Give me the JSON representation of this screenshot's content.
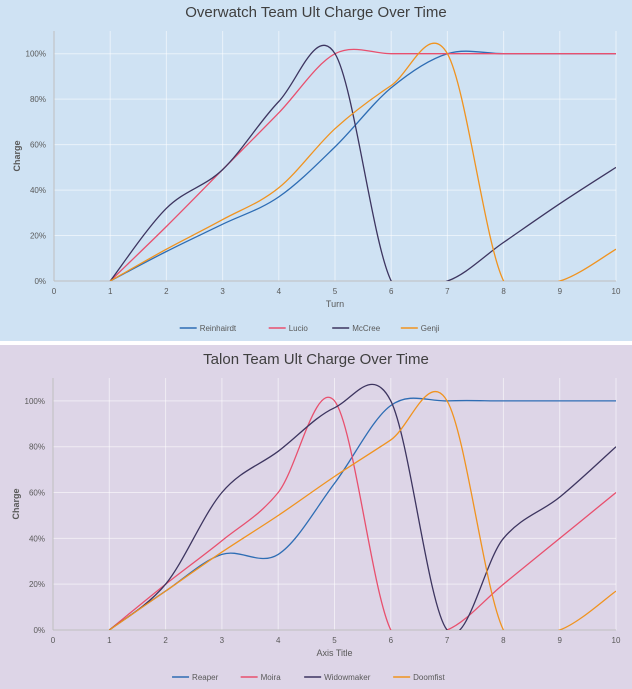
{
  "chart_data": [
    {
      "type": "line",
      "title": "Overwatch Team Ult Charge Over Time",
      "xlabel": "Turn",
      "ylabel": "Charge",
      "xlim": [
        0,
        10
      ],
      "ylim": [
        0,
        1.1
      ],
      "x_ticks": [
        "0",
        "1",
        "2",
        "3",
        "4",
        "5",
        "6",
        "7",
        "8",
        "9",
        "10"
      ],
      "y_ticks": [
        "0%",
        "20%",
        "40%",
        "60%",
        "80%",
        "100%"
      ],
      "grid": true,
      "legend_position": "bottom",
      "series": [
        {
          "name": "Reinhairdt",
          "color": "#2e6db4",
          "points": [
            [
              1,
              0
            ],
            [
              2,
              0.13
            ],
            [
              3,
              0.25
            ],
            [
              4,
              0.37
            ],
            [
              5,
              0.59
            ],
            [
              6,
              0.85
            ],
            [
              7,
              1.0
            ],
            [
              8,
              1.0
            ],
            [
              9,
              1.0
            ],
            [
              10,
              1.0
            ]
          ]
        },
        {
          "name": "Lucio",
          "color": "#e8506e",
          "points": [
            [
              1,
              0
            ],
            [
              2,
              0.24
            ],
            [
              3,
              0.49
            ],
            [
              4,
              0.74
            ],
            [
              5,
              1.0
            ],
            [
              6,
              1.0
            ],
            [
              7,
              1.0
            ],
            [
              8,
              1.0
            ],
            [
              9,
              1.0
            ],
            [
              10,
              1.0
            ]
          ]
        },
        {
          "name": "McCree",
          "color": "#3d3560",
          "points": [
            [
              1,
              0
            ],
            [
              2,
              0.32
            ],
            [
              3,
              0.49
            ],
            [
              4,
              0.79
            ],
            [
              5,
              1.0
            ],
            [
              6,
              0
            ],
            [
              7,
              0
            ],
            [
              8,
              0.17
            ],
            [
              9,
              0.34
            ],
            [
              10,
              0.5
            ]
          ]
        },
        {
          "name": "Genji",
          "color": "#f0931f",
          "points": [
            [
              1,
              0
            ],
            [
              2,
              0.14
            ],
            [
              3,
              0.27
            ],
            [
              4,
              0.41
            ],
            [
              5,
              0.67
            ],
            [
              6,
              0.86
            ],
            [
              7,
              1.0
            ],
            [
              8,
              0
            ],
            [
              9,
              0
            ],
            [
              10,
              0.14
            ]
          ]
        }
      ]
    },
    {
      "type": "line",
      "title": "Talon Team Ult Charge Over Time",
      "xlabel": "Axis Title",
      "ylabel": "Charge",
      "xlim": [
        0,
        10
      ],
      "ylim": [
        0,
        1.1
      ],
      "x_ticks": [
        "0",
        "1",
        "2",
        "3",
        "4",
        "5",
        "6",
        "7",
        "8",
        "9",
        "10"
      ],
      "y_ticks": [
        "0%",
        "20%",
        "40%",
        "60%",
        "80%",
        "100%"
      ],
      "grid": true,
      "legend_position": "bottom",
      "series": [
        {
          "name": "Reaper",
          "color": "#2e6db4",
          "points": [
            [
              1,
              0
            ],
            [
              2,
              0.17
            ],
            [
              3,
              0.33
            ],
            [
              4,
              0.33
            ],
            [
              5,
              0.64
            ],
            [
              6,
              0.98
            ],
            [
              7,
              1.0
            ],
            [
              8,
              1.0
            ],
            [
              9,
              1.0
            ],
            [
              10,
              1.0
            ]
          ]
        },
        {
          "name": "Moira",
          "color": "#e8506e",
          "points": [
            [
              1,
              0
            ],
            [
              2,
              0.2
            ],
            [
              3,
              0.39
            ],
            [
              4,
              0.6
            ],
            [
              5,
              1.0
            ],
            [
              6,
              0
            ],
            [
              7,
              0
            ],
            [
              8,
              0.2
            ],
            [
              9,
              0.4
            ],
            [
              10,
              0.6
            ]
          ]
        },
        {
          "name": "Widowmaker",
          "color": "#3d3560",
          "points": [
            [
              1,
              0
            ],
            [
              2,
              0.2
            ],
            [
              3,
              0.6
            ],
            [
              4,
              0.78
            ],
            [
              5,
              0.97
            ],
            [
              6,
              1.0
            ],
            [
              7,
              0
            ],
            [
              8,
              0.4
            ],
            [
              9,
              0.58
            ],
            [
              10,
              0.8
            ]
          ]
        },
        {
          "name": "Doomfist",
          "color": "#f0931f",
          "points": [
            [
              1,
              0
            ],
            [
              2,
              0.17
            ],
            [
              3,
              0.34
            ],
            [
              4,
              0.5
            ],
            [
              5,
              0.67
            ],
            [
              6,
              0.83
            ],
            [
              7,
              1.0
            ],
            [
              8,
              0
            ],
            [
              9,
              0
            ],
            [
              10,
              0.17
            ]
          ]
        }
      ]
    }
  ]
}
